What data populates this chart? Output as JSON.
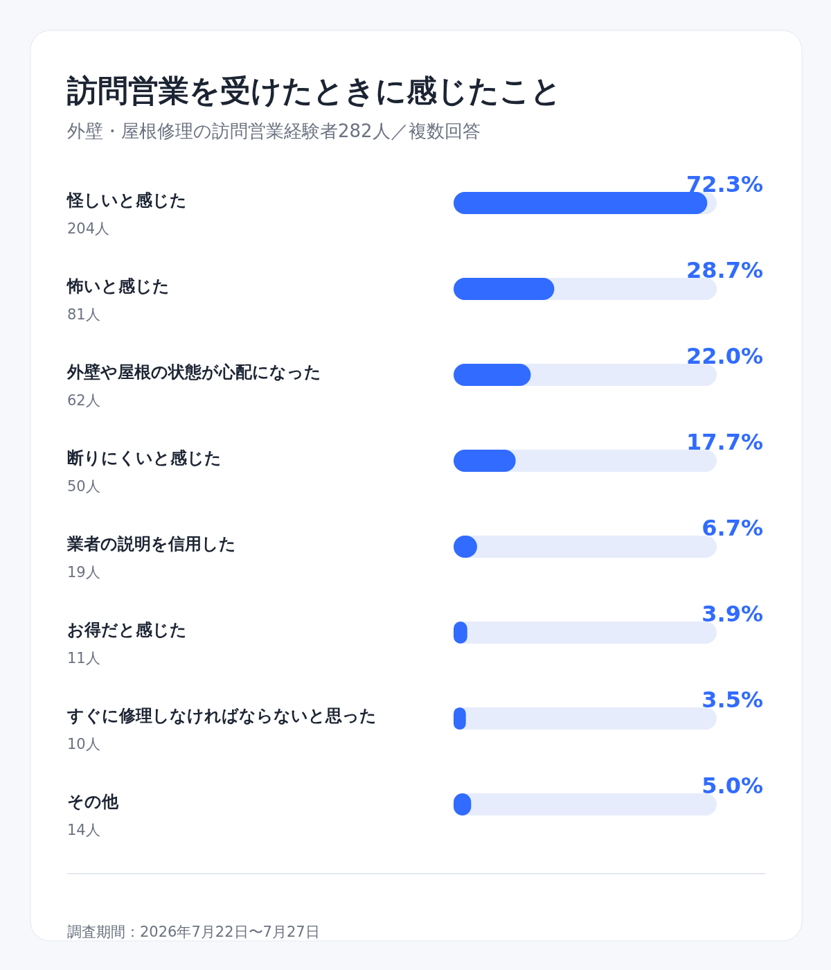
{
  "chart_data": {
    "type": "bar",
    "orientation": "horizontal",
    "title": "訪問営業を受けたときに感じたこと",
    "subtitle": "外壁・屋根修理の訪問営業経験者282人／複数回答",
    "categories": [
      "怪しいと感じた",
      "怖いと感じた",
      "外壁や屋根の状態が心配になった",
      "断りにくいと感じた",
      "業者の説明を信用した",
      "お得だと感じた",
      "すぐに修理しなければならないと思った",
      "その他"
    ],
    "values": [
      72.3,
      28.7,
      22.0,
      17.7,
      6.7,
      3.9,
      3.5,
      5.0
    ],
    "value_labels": [
      "72.3%",
      "28.7%",
      "22.0%",
      "17.7%",
      "6.7%",
      "3.9%",
      "3.5%",
      "5.0%"
    ],
    "color": "#316bff",
    "xlim": [
      0,
      75
    ],
    "annotations": [
      "204人",
      "81人",
      "62人",
      "50人",
      "19人",
      "11人",
      "10人",
      "14人",
      "調査期間：2026年7月22日〜7月27日"
    ]
  }
}
